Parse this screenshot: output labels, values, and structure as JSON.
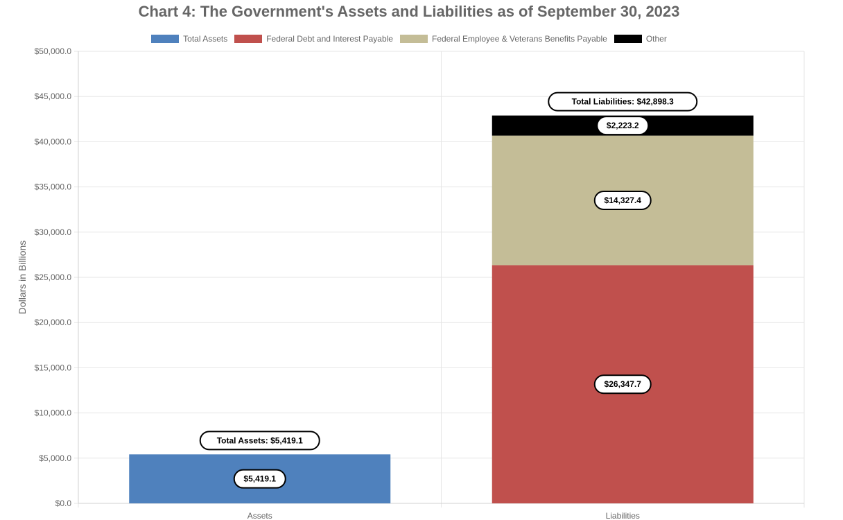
{
  "chart_data": {
    "type": "bar",
    "stacked": true,
    "title": "Chart 4: The Government's Assets and Liabilities as of September 30, 2023",
    "categories": [
      "Assets",
      "Liabilities"
    ],
    "series": [
      {
        "name": "Total Assets",
        "color": "#4f81bd",
        "values": [
          5419.1,
          null
        ],
        "labels": [
          "$5,419.1",
          ""
        ]
      },
      {
        "name": "Federal Debt and Interest Payable",
        "color": "#c0504d",
        "values": [
          null,
          26347.7
        ],
        "labels": [
          "",
          "$26,347.7"
        ]
      },
      {
        "name": "Federal Employee & Veterans Benefits Payable",
        "color": "#c4bd97",
        "values": [
          null,
          14327.4
        ],
        "labels": [
          "",
          "$14,327.4"
        ]
      },
      {
        "name": "Other",
        "color": "#000000",
        "values": [
          null,
          2223.2
        ],
        "labels": [
          "",
          "$2,223.2"
        ]
      }
    ],
    "totals": [
      {
        "category": "Assets",
        "value": 5419.1,
        "label": "Total Assets: $5,419.1"
      },
      {
        "category": "Liabilities",
        "value": 42898.3,
        "label": "Total Liabilities: $42,898.3"
      }
    ],
    "xlabel": "",
    "ylabel": "Dollars in Billions",
    "ylim": [
      0,
      50000
    ],
    "yticks": [
      0,
      5000,
      10000,
      15000,
      20000,
      25000,
      30000,
      35000,
      40000,
      45000,
      50000
    ],
    "ytick_labels": [
      "$0.0",
      "$5,000.0",
      "$10,000.0",
      "$15,000.0",
      "$20,000.0",
      "$25,000.0",
      "$30,000.0",
      "$35,000.0",
      "$40,000.0",
      "$45,000.0",
      "$50,000.0"
    ],
    "grid": true,
    "legend_position": "top"
  }
}
